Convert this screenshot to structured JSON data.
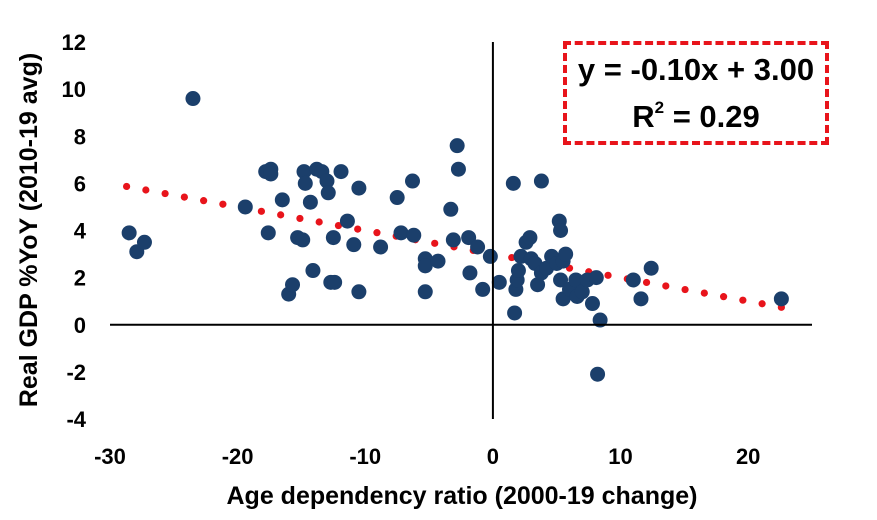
{
  "chart_data": {
    "type": "scatter",
    "title": "",
    "xlabel": "Age dependency ratio (2000-19 change)",
    "ylabel": "Real GDP %YoY (2010-19 avg)",
    "xlim": [
      -30,
      25
    ],
    "ylim": [
      -4,
      12
    ],
    "xticks": [
      -30,
      -20,
      -10,
      0,
      10,
      20
    ],
    "yticks": [
      -4,
      -2,
      0,
      2,
      4,
      6,
      8,
      10,
      12
    ],
    "xtick_labels": [
      "-30",
      "-20",
      "-10",
      "0",
      "10",
      "20"
    ],
    "ytick_labels": [
      "-4",
      "-2",
      "0",
      "2",
      "4",
      "6",
      "8",
      "10",
      "12"
    ],
    "grid": false,
    "legend": "none",
    "marker_color": "#1b3f6b",
    "trendline_color": "#e8141b",
    "trendline": {
      "slope": -0.1,
      "intercept": 3.0,
      "x_range": [
        -28.7,
        22.6
      ],
      "style": "dotted"
    },
    "annotation": {
      "equation": "y = -0.10x + 3.00",
      "r2_label": "R",
      "r2_exp": "2",
      "r2_value": " = 0.29"
    },
    "points": [
      {
        "x": -28.5,
        "y": 3.9
      },
      {
        "x": -27.9,
        "y": 3.1
      },
      {
        "x": -27.3,
        "y": 3.5
      },
      {
        "x": -23.5,
        "y": 9.6
      },
      {
        "x": -19.4,
        "y": 5.0
      },
      {
        "x": -17.8,
        "y": 6.5
      },
      {
        "x": -17.4,
        "y": 6.6
      },
      {
        "x": -17.4,
        "y": 6.4
      },
      {
        "x": -17.6,
        "y": 3.9
      },
      {
        "x": -16.5,
        "y": 5.3
      },
      {
        "x": -16.0,
        "y": 1.3
      },
      {
        "x": -15.7,
        "y": 1.7
      },
      {
        "x": -15.3,
        "y": 3.7
      },
      {
        "x": -14.9,
        "y": 3.6
      },
      {
        "x": -14.8,
        "y": 6.5
      },
      {
        "x": -14.7,
        "y": 6.0
      },
      {
        "x": -14.3,
        "y": 5.2
      },
      {
        "x": -14.1,
        "y": 2.3
      },
      {
        "x": -13.8,
        "y": 6.6
      },
      {
        "x": -13.4,
        "y": 6.5
      },
      {
        "x": -13.0,
        "y": 6.1
      },
      {
        "x": -12.9,
        "y": 5.6
      },
      {
        "x": -12.7,
        "y": 1.8
      },
      {
        "x": -12.5,
        "y": 3.7
      },
      {
        "x": -12.4,
        "y": 1.8
      },
      {
        "x": -11.9,
        "y": 6.5
      },
      {
        "x": -11.4,
        "y": 4.4
      },
      {
        "x": -10.9,
        "y": 3.4
      },
      {
        "x": -10.5,
        "y": 5.8
      },
      {
        "x": -10.5,
        "y": 1.4
      },
      {
        "x": -8.8,
        "y": 3.3
      },
      {
        "x": -7.5,
        "y": 5.4
      },
      {
        "x": -7.2,
        "y": 3.9
      },
      {
        "x": -6.3,
        "y": 6.1
      },
      {
        "x": -6.2,
        "y": 3.8
      },
      {
        "x": -5.3,
        "y": 2.8
      },
      {
        "x": -5.3,
        "y": 2.5
      },
      {
        "x": -5.3,
        "y": 1.4
      },
      {
        "x": -4.3,
        "y": 2.7
      },
      {
        "x": -3.3,
        "y": 4.9
      },
      {
        "x": -3.1,
        "y": 3.6
      },
      {
        "x": -2.8,
        "y": 7.6
      },
      {
        "x": -2.7,
        "y": 6.6
      },
      {
        "x": -1.9,
        "y": 3.7
      },
      {
        "x": -1.8,
        "y": 2.2
      },
      {
        "x": -1.2,
        "y": 3.3
      },
      {
        "x": -0.8,
        "y": 1.5
      },
      {
        "x": -0.2,
        "y": 2.9
      },
      {
        "x": 0.5,
        "y": 1.8
      },
      {
        "x": 1.6,
        "y": 6.0
      },
      {
        "x": 1.7,
        "y": 0.5
      },
      {
        "x": 1.8,
        "y": 1.5
      },
      {
        "x": 1.9,
        "y": 1.9
      },
      {
        "x": 2.0,
        "y": 2.3
      },
      {
        "x": 2.2,
        "y": 2.9
      },
      {
        "x": 2.6,
        "y": 3.5
      },
      {
        "x": 2.9,
        "y": 3.7
      },
      {
        "x": 3.0,
        "y": 2.8
      },
      {
        "x": 3.3,
        "y": 2.6
      },
      {
        "x": 3.5,
        "y": 1.7
      },
      {
        "x": 3.8,
        "y": 2.2
      },
      {
        "x": 3.8,
        "y": 6.1
      },
      {
        "x": 4.2,
        "y": 2.4
      },
      {
        "x": 4.6,
        "y": 2.9
      },
      {
        "x": 5.0,
        "y": 2.6
      },
      {
        "x": 5.2,
        "y": 4.4
      },
      {
        "x": 5.3,
        "y": 4.0
      },
      {
        "x": 5.5,
        "y": 2.7
      },
      {
        "x": 5.7,
        "y": 3.0
      },
      {
        "x": 5.3,
        "y": 1.9
      },
      {
        "x": 5.5,
        "y": 1.1
      },
      {
        "x": 6.0,
        "y": 1.5
      },
      {
        "x": 6.5,
        "y": 1.9
      },
      {
        "x": 6.6,
        "y": 1.2
      },
      {
        "x": 7.0,
        "y": 1.4
      },
      {
        "x": 7.4,
        "y": 1.9
      },
      {
        "x": 7.8,
        "y": 0.9
      },
      {
        "x": 8.1,
        "y": 2.0
      },
      {
        "x": 8.2,
        "y": -2.1
      },
      {
        "x": 8.4,
        "y": 0.2
      },
      {
        "x": 11.0,
        "y": 1.9
      },
      {
        "x": 11.6,
        "y": 1.1
      },
      {
        "x": 12.4,
        "y": 2.4
      },
      {
        "x": 22.6,
        "y": 1.1
      }
    ]
  }
}
